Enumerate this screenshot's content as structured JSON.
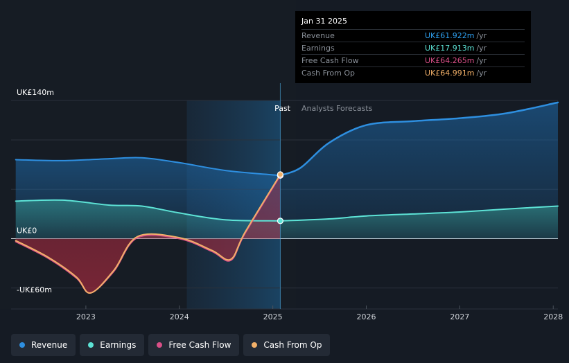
{
  "tooltip": {
    "date": "Jan 31 2025",
    "rows": [
      {
        "label": "Revenue",
        "value": "UK£61.922m",
        "unit": "/yr",
        "color": "#2ea0f0"
      },
      {
        "label": "Earnings",
        "value": "UK£17.913m",
        "unit": "/yr",
        "color": "#5de3d6"
      },
      {
        "label": "Free Cash Flow",
        "value": "UK£64.265m",
        "unit": "/yr",
        "color": "#d94f87"
      },
      {
        "label": "Cash From Op",
        "value": "UK£64.991m",
        "unit": "/yr",
        "color": "#f2b069"
      }
    ]
  },
  "labels": {
    "past": "Past",
    "forecast": "Analysts Forecasts"
  },
  "legend": [
    {
      "label": "Revenue",
      "color": "#2e8fe0"
    },
    {
      "label": "Earnings",
      "color": "#5de3d6"
    },
    {
      "label": "Free Cash Flow",
      "color": "#d94f87"
    },
    {
      "label": "Cash From Op",
      "color": "#f2b069"
    }
  ],
  "chart_data": {
    "type": "line",
    "ylim": [
      -60,
      140
    ],
    "xlim": [
      2022.2,
      2028.05
    ],
    "yticks": [
      {
        "value": 140,
        "label": "UK£140m"
      },
      {
        "value": 0,
        "label": "UK£0"
      },
      {
        "value": -60,
        "label": "-UK£60m"
      }
    ],
    "xticks": [
      {
        "value": 2023,
        "label": "2023"
      },
      {
        "value": 2024,
        "label": "2024"
      },
      {
        "value": 2025,
        "label": "2025"
      },
      {
        "value": 2026,
        "label": "2026"
      },
      {
        "value": 2027,
        "label": "2027"
      },
      {
        "value": 2028,
        "label": "2028"
      }
    ],
    "past_start": 2024.08,
    "divider": 2025.08,
    "series": [
      {
        "name": "Revenue",
        "color": "#2e8fe0",
        "x": [
          2022.25,
          2022.75,
          2023.25,
          2023.6,
          2024.0,
          2024.5,
          2025.08
        ],
        "y": [
          80,
          79,
          81,
          82,
          77,
          69,
          64
        ]
      },
      {
        "name": "Revenue forecast",
        "color": "#2e8fe0",
        "x": [
          2025.08,
          2025.3,
          2025.6,
          2026.0,
          2026.5,
          2027.0,
          2027.5,
          2028.05
        ],
        "y": [
          64,
          72,
          97,
          115,
          119,
          122,
          127,
          138
        ]
      },
      {
        "name": "Earnings",
        "color": "#5de3d6",
        "x": [
          2022.25,
          2022.75,
          2023.25,
          2023.6,
          2024.0,
          2024.5,
          2025.08
        ],
        "y": [
          38,
          39,
          34,
          33,
          26,
          19,
          18
        ]
      },
      {
        "name": "Earnings forecast",
        "color": "#5de3d6",
        "x": [
          2025.08,
          2025.6,
          2026.0,
          2026.5,
          2027.0,
          2027.5,
          2028.05
        ],
        "y": [
          18,
          20,
          23,
          25,
          27,
          30,
          33
        ]
      },
      {
        "name": "Free Cash Flow",
        "color": "#d94f87",
        "x": [
          2022.25,
          2022.6,
          2022.9,
          2023.05,
          2023.3,
          2023.55,
          2024.0,
          2024.35,
          2024.55,
          2024.7,
          2025.08
        ],
        "y": [
          -3,
          -20,
          -40,
          -55,
          -33,
          1,
          0,
          -13,
          -22,
          5,
          64
        ]
      },
      {
        "name": "Cash From Op",
        "color": "#f2b069",
        "x": [
          2022.25,
          2022.6,
          2022.9,
          2023.05,
          2023.3,
          2023.55,
          2024.0,
          2024.35,
          2024.55,
          2024.7,
          2025.08
        ],
        "y": [
          -2,
          -19,
          -39,
          -55,
          -32,
          2,
          1,
          -12,
          -21,
          6,
          65
        ]
      }
    ]
  }
}
